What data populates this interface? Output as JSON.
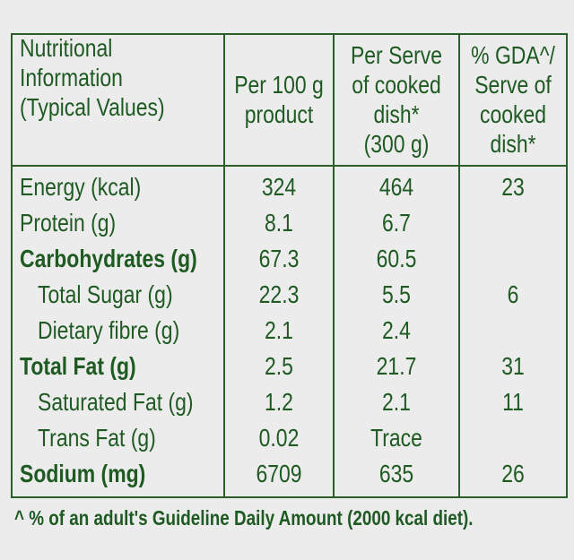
{
  "table": {
    "header": [
      [
        "Nutritional",
        "Information",
        "(Typical Values)"
      ],
      [
        "Per 100 g",
        "product"
      ],
      [
        "Per Serve",
        "of cooked",
        "dish*",
        "(300 g)"
      ],
      [
        "% GDA^/",
        "Serve of",
        "cooked",
        "dish*"
      ]
    ],
    "rows": [
      [
        "Energy (kcal)",
        "324",
        "464",
        "23"
      ],
      [
        "Protein (g)",
        "8.1",
        "6.7",
        null
      ],
      [
        "Carbohydrates (g)",
        "67.3",
        "60.5",
        null
      ],
      [
        "Total Sugar (g)",
        "22.3",
        "5.5",
        "6"
      ],
      [
        "Dietary fibre (g)",
        "2.1",
        "2.4",
        null
      ],
      [
        "Total Fat (g)",
        "2.5",
        "21.7",
        "31"
      ],
      [
        "Saturated Fat (g)",
        "1.2",
        "2.1",
        "11"
      ],
      [
        "Trans Fat (g)",
        "0.02",
        "Trace",
        null
      ],
      [
        "Sodium (mg)",
        "6709",
        "635",
        "26"
      ]
    ],
    "bold_rows": [
      2,
      5,
      8
    ],
    "indented_rows": [
      3,
      4,
      6,
      7
    ]
  },
  "footnote": "^ % of an adult's Guideline Daily Amount (2000 kcal diet)."
}
